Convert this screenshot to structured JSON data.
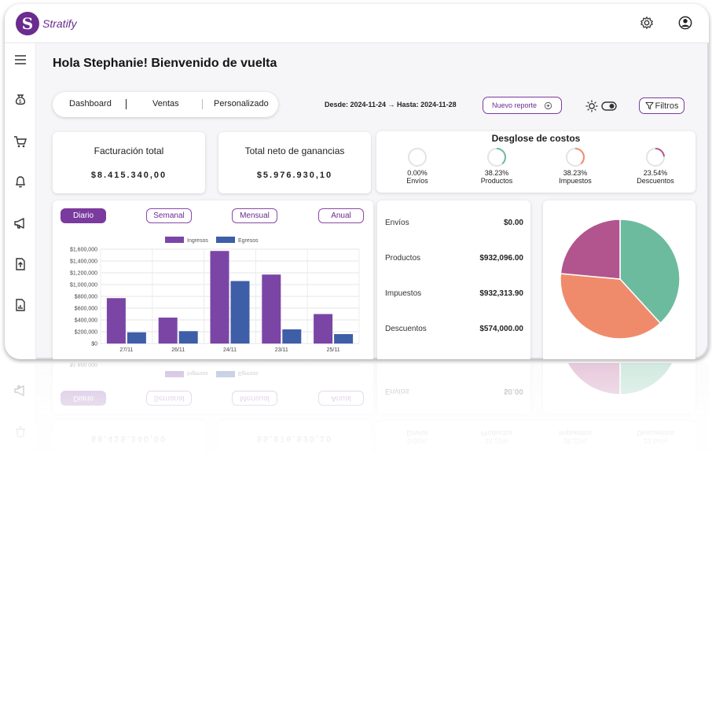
{
  "app": {
    "name": "Stratify",
    "logo_letter": "S"
  },
  "greeting": "Hola Stephanie! Bienvenido de vuelta",
  "tabs": [
    "Dashboard",
    "Ventas",
    "Personalizado"
  ],
  "date_range": "Desde: 2024-11-24 → Hasta: 2024-11-28",
  "buttons": {
    "new_report": "Nuevo reporte",
    "filters": "Filtros"
  },
  "kpis": {
    "billing": {
      "title": "Facturación total",
      "value": "$8.415.340,00"
    },
    "net": {
      "title": "Total neto de ganancias",
      "value": "$5.976.930,10"
    }
  },
  "cost_breakdown": {
    "title": "Desglose de costos",
    "items": [
      {
        "pct_label": "0.00%",
        "label": "Envíos",
        "pct": 0.0,
        "color": "#6dbb9e"
      },
      {
        "pct_label": "38.23%",
        "label": "Productos",
        "pct": 38.23,
        "color": "#6dbb9e"
      },
      {
        "pct_label": "38.23%",
        "label": "Impuestos",
        "pct": 38.23,
        "color": "#ef8b6b"
      },
      {
        "pct_label": "23.54%",
        "label": "Descuentos",
        "pct": 23.54,
        "color": "#b2558e"
      }
    ]
  },
  "periods": {
    "items": [
      "Diario",
      "Semanal",
      "Mensual",
      "Anual"
    ],
    "active": "Diario"
  },
  "breakdown": [
    {
      "label": "Envíos",
      "amount": "$0.00"
    },
    {
      "label": "Productos",
      "amount": "$932,096.00"
    },
    {
      "label": "Impuestos",
      "amount": "$932,313.90"
    },
    {
      "label": "Descuentos",
      "amount": "$574,000.00"
    }
  ],
  "chart_data": [
    {
      "type": "bar",
      "categories": [
        "27/11",
        "26/11",
        "24/11",
        "23/11",
        "25/11"
      ],
      "series": [
        {
          "name": "Ingresos",
          "color": "#7b45a6",
          "values": [
            770000,
            440000,
            1570000,
            1170000,
            500000
          ]
        },
        {
          "name": "Egresos",
          "color": "#3f5ea8",
          "values": [
            190000,
            210000,
            1060000,
            240000,
            160000
          ]
        }
      ],
      "yticks": [
        "$0",
        "$200,000",
        "$400,000",
        "$600,000",
        "$800,000",
        "$1,000,000",
        "$1,200,000",
        "$1,400,000",
        "$1,600,000"
      ],
      "ylim": [
        0,
        1600000
      ],
      "legend": "top-center",
      "grid": true
    },
    {
      "type": "pie",
      "labels": [
        "Productos",
        "Impuestos",
        "Descuentos",
        "Envíos"
      ],
      "values": [
        38.23,
        38.23,
        23.54,
        0.0
      ],
      "colors": [
        "#6dbb9e",
        "#ef8b6b",
        "#b2558e",
        "#cccccc"
      ]
    }
  ]
}
